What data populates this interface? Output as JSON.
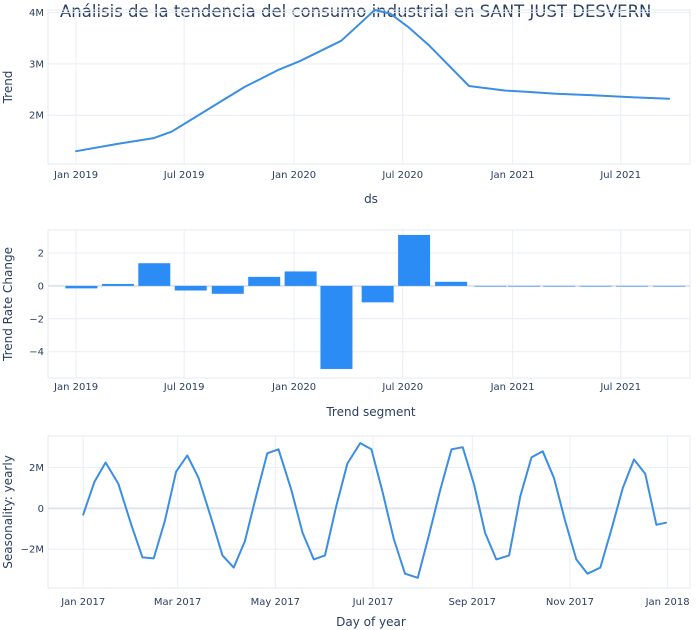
{
  "title": "Análisis de la tendencia del consumo industrial en SANT JUST DESVERN",
  "colors": {
    "series": "#3b8ee3",
    "bar": "#2b8cf5",
    "grid": "#e9eef6",
    "axis_text": "#2a3f5f",
    "frame": "#e6ebf2"
  },
  "chart_data": [
    {
      "type": "line",
      "series": [
        {
          "x": [
            "2019-01-01",
            "2019-03-15",
            "2019-05-10",
            "2019-06-10",
            "2019-08-15",
            "2019-10-10",
            "2019-12-05",
            "2020-01-10",
            "2020-03-20",
            "2020-05-15",
            "2020-06-10",
            "2020-07-10",
            "2020-08-15",
            "2020-10-20",
            "2020-12-20",
            "2021-01-20",
            "2021-03-15",
            "2021-05-15",
            "2021-07-20",
            "2021-09-20"
          ],
          "y": [
            1.3,
            1.45,
            1.55,
            1.68,
            2.15,
            2.55,
            2.88,
            3.05,
            3.45,
            4.05,
            3.98,
            3.72,
            3.35,
            2.57,
            2.48,
            2.46,
            2.42,
            2.39,
            2.35,
            2.32
          ]
        }
      ],
      "xlabel": "ds",
      "ylabel": "Trend",
      "xlim": [
        "2018-11-15",
        "2021-10-25"
      ],
      "ylim": [
        1.05,
        4.05
      ],
      "xticks": [
        "2019-01-01",
        "2019-07-01",
        "2020-01-01",
        "2020-07-01",
        "2021-01-01",
        "2021-07-01"
      ],
      "xtick_labels": [
        "Jan 2019",
        "Jul 2019",
        "Jan 2020",
        "Jul 2020",
        "Jan 2021",
        "Jul 2021"
      ],
      "yticks": [
        2,
        3,
        4
      ],
      "ytick_labels": [
        "2M",
        "3M",
        "4M"
      ],
      "grid": true
    },
    {
      "type": "bar",
      "categories": [
        "2019-01-10",
        "2019-03-12",
        "2019-05-12",
        "2019-07-12",
        "2019-09-12",
        "2019-11-12",
        "2020-01-12",
        "2020-03-12",
        "2020-05-20",
        "2020-07-20",
        "2020-09-20",
        "2020-11-25",
        "2021-01-20",
        "2021-03-20",
        "2021-05-20",
        "2021-07-20",
        "2021-09-20"
      ],
      "values": [
        -0.15,
        0.12,
        1.38,
        -0.28,
        -0.48,
        0.55,
        0.88,
        -5.05,
        -1.0,
        3.1,
        0.25,
        0,
        0,
        0,
        0,
        0,
        0
      ],
      "xlabel": "Trend segment",
      "ylabel": "Trend Rate Change",
      "xlim": [
        "2018-11-15",
        "2021-10-25"
      ],
      "ylim": [
        -5.6,
        3.4
      ],
      "xticks": [
        "2019-01-01",
        "2019-07-01",
        "2020-01-01",
        "2020-07-01",
        "2021-01-01",
        "2021-07-01"
      ],
      "xtick_labels": [
        "Jan 2019",
        "Jul 2019",
        "Jan 2020",
        "Jul 2020",
        "Jan 2021",
        "Jul 2021"
      ],
      "yticks": [
        -4,
        -2,
        0,
        2
      ],
      "ytick_labels": [
        "−4",
        "−2",
        "0",
        "2"
      ],
      "grid": true
    },
    {
      "type": "line",
      "series": [
        {
          "x": [
            "2017-01-01",
            "2017-01-08",
            "2017-01-15",
            "2017-01-23",
            "2017-01-31",
            "2017-02-07",
            "2017-02-14",
            "2017-02-21",
            "2017-02-28",
            "2017-03-07",
            "2017-03-14",
            "2017-03-22",
            "2017-03-29",
            "2017-04-05",
            "2017-04-12",
            "2017-04-19",
            "2017-04-26",
            "2017-05-03",
            "2017-05-11",
            "2017-05-18",
            "2017-05-25",
            "2017-06-01",
            "2017-06-08",
            "2017-06-15",
            "2017-06-23",
            "2017-06-30",
            "2017-07-07",
            "2017-07-14",
            "2017-07-21",
            "2017-07-29",
            "2017-08-05",
            "2017-08-12",
            "2017-08-19",
            "2017-08-26",
            "2017-09-02",
            "2017-09-09",
            "2017-09-16",
            "2017-09-24",
            "2017-10-01",
            "2017-10-08",
            "2017-10-15",
            "2017-10-22",
            "2017-10-29",
            "2017-11-05",
            "2017-11-12",
            "2017-11-20",
            "2017-11-27",
            "2017-12-04",
            "2017-12-11",
            "2017-12-18",
            "2017-12-25",
            "2017-12-31"
          ],
          "y": [
            -0.3,
            1.3,
            2.25,
            1.2,
            -0.8,
            -2.4,
            -2.45,
            -0.6,
            1.8,
            2.6,
            1.5,
            -0.5,
            -2.3,
            -2.9,
            -1.6,
            0.6,
            2.7,
            2.9,
            0.9,
            -1.2,
            -2.5,
            -2.3,
            0.1,
            2.2,
            3.2,
            2.9,
            0.8,
            -1.5,
            -3.2,
            -3.4,
            -1.3,
            0.9,
            2.9,
            3.0,
            1.2,
            -1.2,
            -2.5,
            -2.3,
            0.6,
            2.5,
            2.8,
            1.5,
            -0.6,
            -2.5,
            -3.2,
            -2.9,
            -1.0,
            1.0,
            2.4,
            1.7,
            -0.8,
            -0.7
          ]
        }
      ],
      "xlabel": "Day of year",
      "ylabel": "Seasonality: yearly",
      "xlim": [
        "2016-12-10",
        "2018-01-15"
      ],
      "ylim": [
        -3.9,
        3.55
      ],
      "xticks": [
        "2017-01-01",
        "2017-03-01",
        "2017-05-01",
        "2017-07-01",
        "2017-09-01",
        "2017-11-01",
        "2018-01-01"
      ],
      "xtick_labels": [
        "Jan 2017",
        "Mar 2017",
        "May 2017",
        "Jul 2017",
        "Sep 2017",
        "Nov 2017",
        "Jan 2018"
      ],
      "yticks": [
        -2,
        0,
        2
      ],
      "ytick_labels": [
        "−2M",
        "0",
        "2M"
      ],
      "grid": true
    }
  ]
}
